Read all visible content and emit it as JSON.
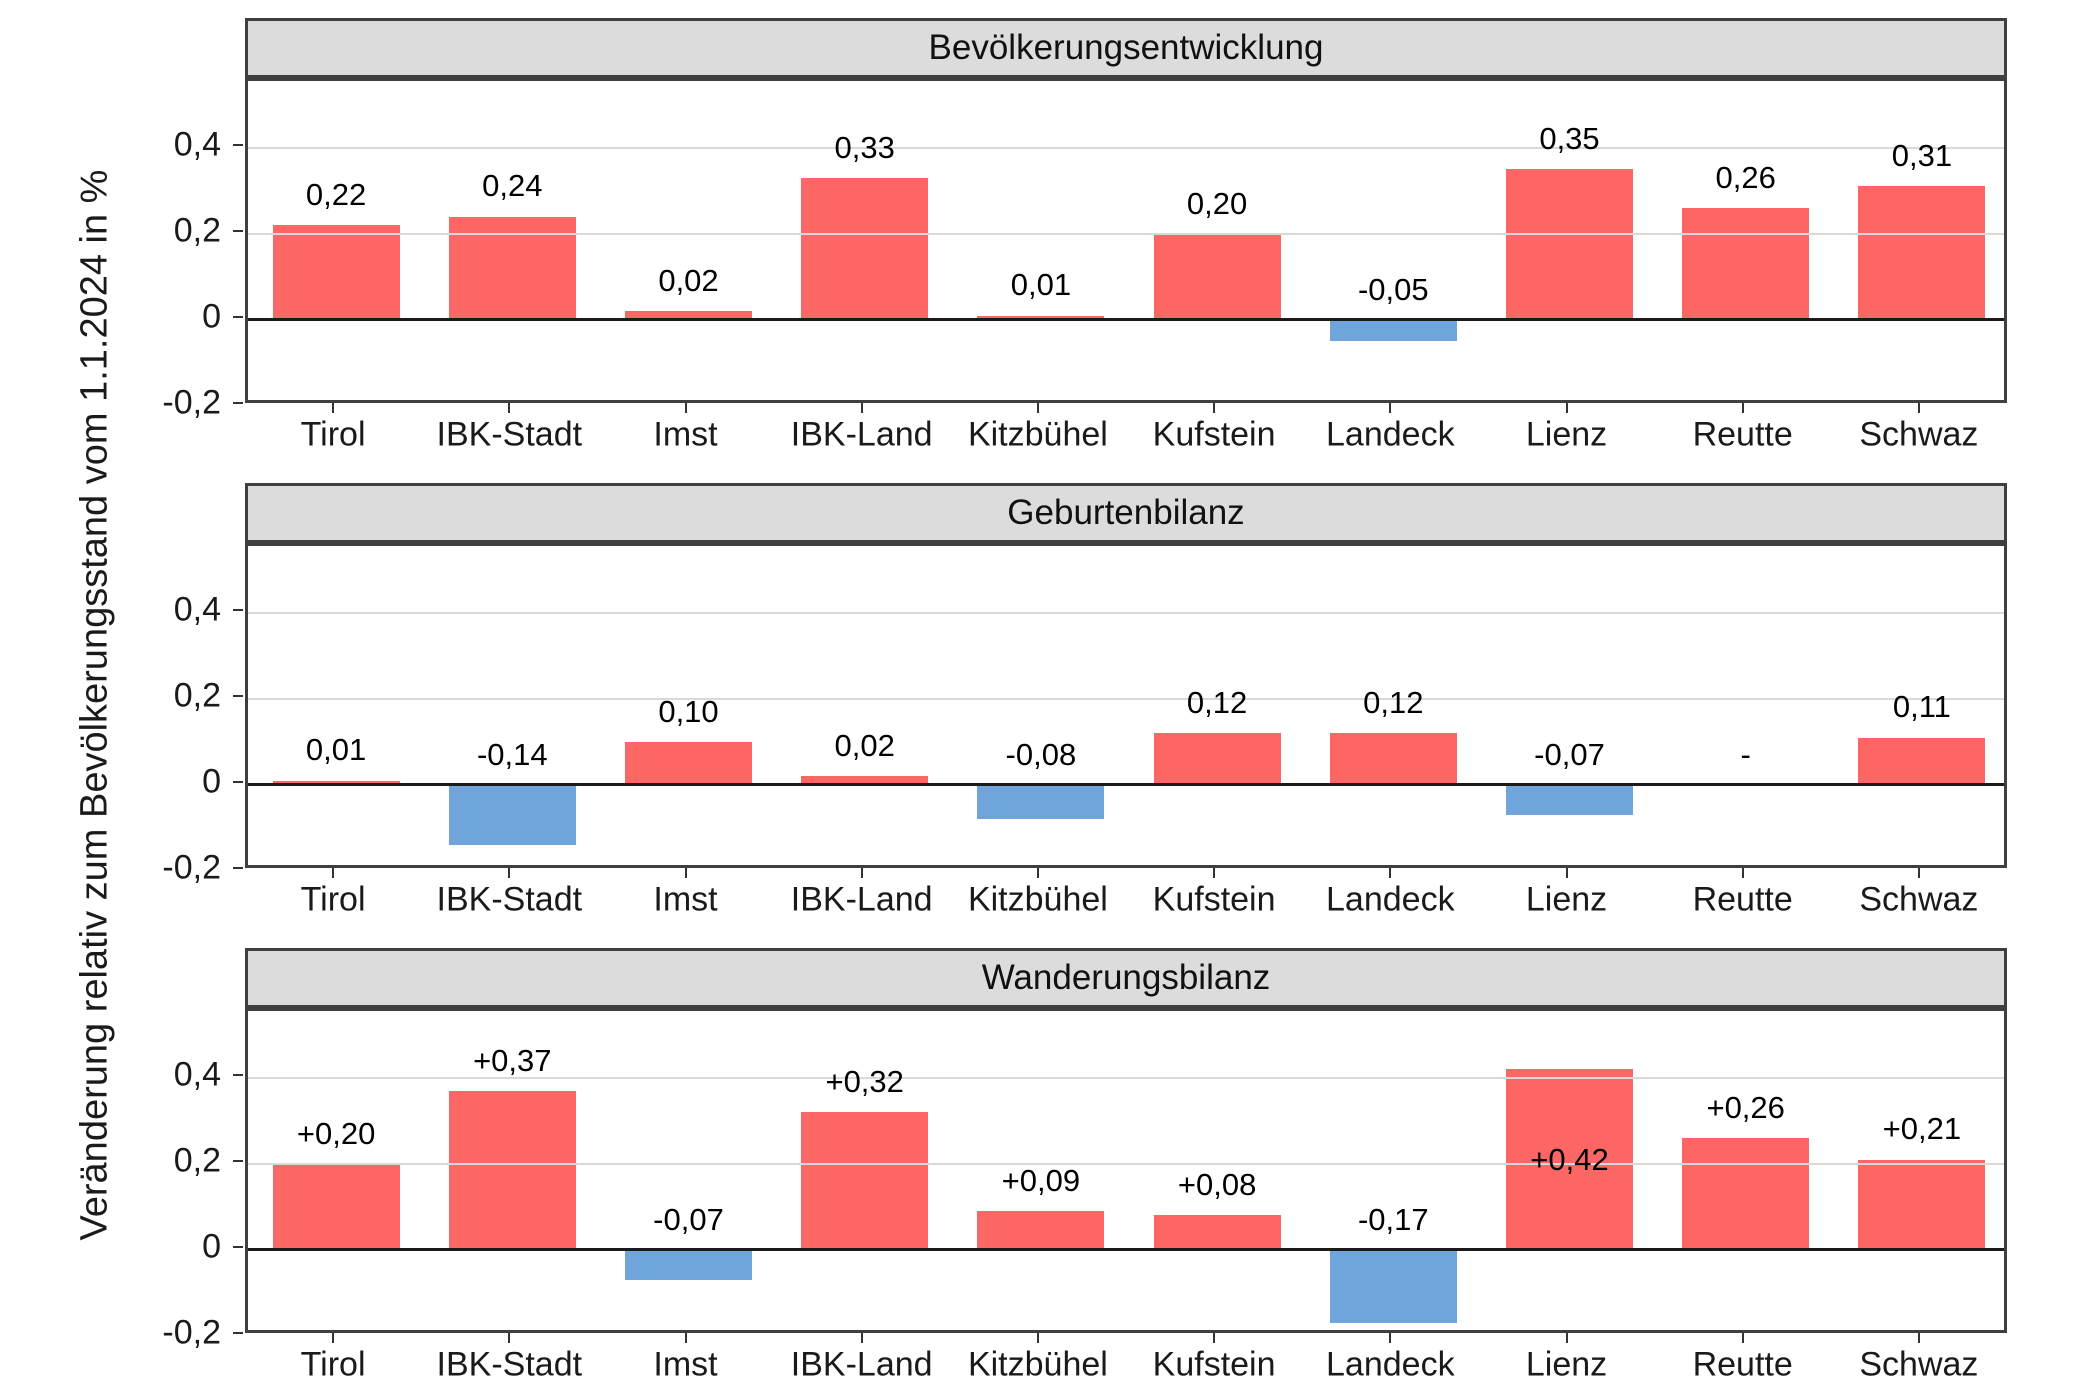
{
  "figure": {
    "background": "#ffffff"
  },
  "y_axis": {
    "title": "Veränderung relativ zum Bevölkerungsstand vom 1.1.2024 in %",
    "tick_labels": [
      "0,4",
      "0,2",
      "0",
      "-0,2"
    ],
    "tick_values": [
      0.4,
      0.2,
      0,
      -0.2
    ]
  },
  "categories": [
    "Tirol",
    "IBK-Stadt",
    "Imst",
    "IBK-Land",
    "Kitzbühel",
    "Kufstein",
    "Landeck",
    "Lienz",
    "Reutte",
    "Schwaz"
  ],
  "colors": {
    "positive_bar": "#fc6765",
    "negative_bar": "#6fa5db",
    "header_fill": "#dcdcdc",
    "panel_border": "#3f3f3f",
    "gridline": "#d9d9d9",
    "zero_line": "#1a1a1a",
    "axis_text": "#1a1a1a"
  },
  "chart_data": [
    {
      "type": "bar",
      "title": "Bevölkerungsentwicklung",
      "categories": [
        "Tirol",
        "IBK-Stadt",
        "Imst",
        "IBK-Land",
        "Kitzbühel",
        "Kufstein",
        "Landeck",
        "Lienz",
        "Reutte",
        "Schwaz"
      ],
      "values": [
        0.22,
        0.24,
        0.02,
        0.33,
        0.01,
        0.2,
        -0.05,
        0.35,
        0.26,
        0.31
      ],
      "labels": [
        "0,22",
        "0,24",
        "0,02",
        "0,33",
        "0,01",
        "0,20",
        "-0,05",
        "0,35",
        "0,26",
        "0,31"
      ],
      "ylim": [
        -0.2,
        0.555
      ],
      "grid": true,
      "legend": "none",
      "label_y_overrides": {}
    },
    {
      "type": "bar",
      "title": "Geburtenbilanz",
      "categories": [
        "Tirol",
        "IBK-Stadt",
        "Imst",
        "IBK-Land",
        "Kitzbühel",
        "Kufstein",
        "Landeck",
        "Lienz",
        "Reutte",
        "Schwaz"
      ],
      "values": [
        0.01,
        -0.14,
        0.1,
        0.02,
        -0.08,
        0.12,
        0.12,
        -0.07,
        null,
        0.11
      ],
      "labels": [
        "0,01",
        "-0,14",
        "0,10",
        "0,02",
        "-0,08",
        "0,12",
        "0,12",
        "-0,07",
        "-",
        "0,11"
      ],
      "ylim": [
        -0.2,
        0.555
      ],
      "grid": true,
      "legend": "none",
      "label_y_overrides": {}
    },
    {
      "type": "bar",
      "title": "Wanderungsbilanz",
      "categories": [
        "Tirol",
        "IBK-Stadt",
        "Imst",
        "IBK-Land",
        "Kitzbühel",
        "Kufstein",
        "Landeck",
        "Lienz",
        "Reutte",
        "Schwaz"
      ],
      "values": [
        0.2,
        0.37,
        -0.07,
        0.32,
        0.09,
        0.08,
        -0.17,
        0.42,
        0.26,
        0.21
      ],
      "labels": [
        "+0,20",
        "+0,37",
        "-0,07",
        "+0,32",
        "+0,09",
        "+0,08",
        "-0,17",
        "+0,42",
        "+0,26",
        "+0,21"
      ],
      "ylim": [
        -0.2,
        0.555
      ],
      "grid": true,
      "legend": "none",
      "label_y_overrides": {
        "7": 0.21
      }
    }
  ]
}
